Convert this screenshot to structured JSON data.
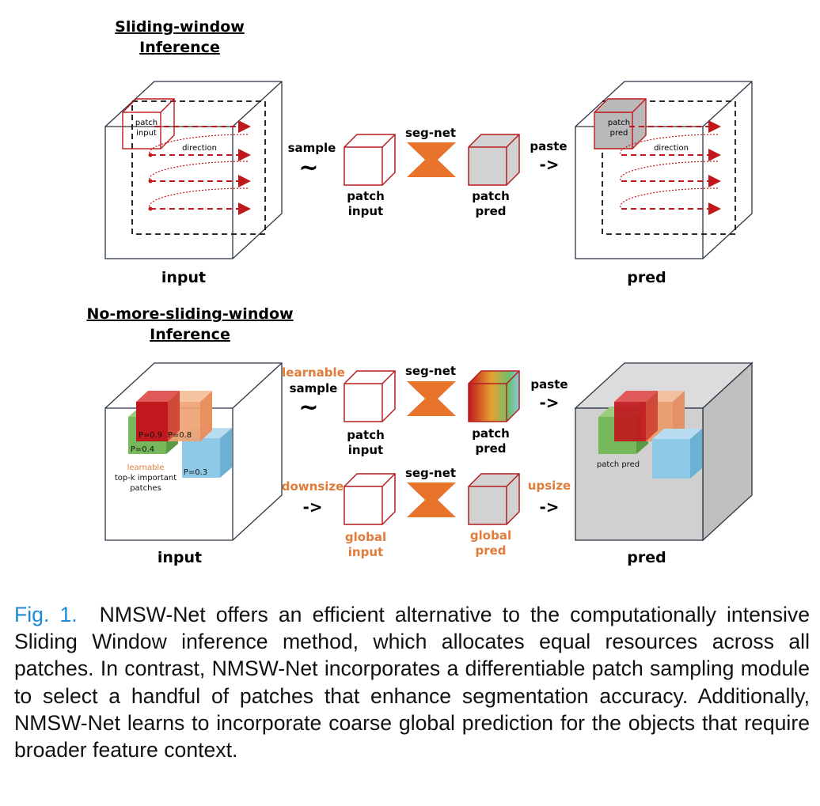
{
  "top": {
    "title_line1": "Sliding-window",
    "title_line2": "Inference",
    "input_cube": {
      "label": "input",
      "patch_label_1": "patch",
      "patch_label_2": "input",
      "direction": "direction"
    },
    "sample": {
      "label": "sample",
      "symbol": "~"
    },
    "patch_input": {
      "line1": "patch",
      "line2": "input"
    },
    "segnet": "seg-net",
    "patch_pred": {
      "line1": "patch",
      "line2": "pred"
    },
    "paste": {
      "label": "paste",
      "symbol": "->"
    },
    "pred_cube": {
      "label": "pred",
      "patch_label_1": "patch",
      "patch_label_2": "pred",
      "direction": "direction"
    }
  },
  "bottom": {
    "title_line1": "No-more-sliding-window",
    "title_line2": "Inference",
    "input_cube": {
      "label": "input",
      "p_red": "P=0.9",
      "p_orange": "P=0.8",
      "p_green": "P=0.4",
      "p_blue": "P=0.3",
      "learnable": "learnable",
      "topk_1": "top-k important",
      "topk_2": "patches"
    },
    "learnable_sample": {
      "line1": "learnable",
      "line2": "sample",
      "symbol": "~"
    },
    "patch_input": {
      "line1": "patch",
      "line2": "input"
    },
    "segnet_top": "seg-net",
    "patch_pred": {
      "line1": "patch",
      "line2": "pred"
    },
    "paste": {
      "label": "paste",
      "symbol": "->"
    },
    "downsize": {
      "label": "downsize",
      "symbol": "->"
    },
    "global_input": {
      "line1": "global",
      "line2": "input"
    },
    "segnet_bottom": "seg-net",
    "global_pred": {
      "line1": "global",
      "line2": "pred"
    },
    "upsize": {
      "label": "upsize",
      "symbol": "->"
    },
    "pred_cube": {
      "label": "pred",
      "patch_pred": "patch pred"
    }
  },
  "caption": {
    "fig_label": "Fig. 1.",
    "text": "NMSW-Net offers an efficient alternative to the computationally intensive Sliding Window inference method, which allocates equal resources across all patches. In contrast, NMSW-Net incorporates a differentiable patch sampling module to select a handful of patches that enhance segmentation accuracy. Additionally, NMSW-Net learns to incorporate coarse global prediction for the objects that require broader feature context."
  },
  "colors": {
    "dark_red": "#b41e1e",
    "orange": "#e8742c",
    "orange_text": "#e07b39",
    "gray": "#d2d2d2",
    "caption_blue": "#1c8ad6"
  }
}
